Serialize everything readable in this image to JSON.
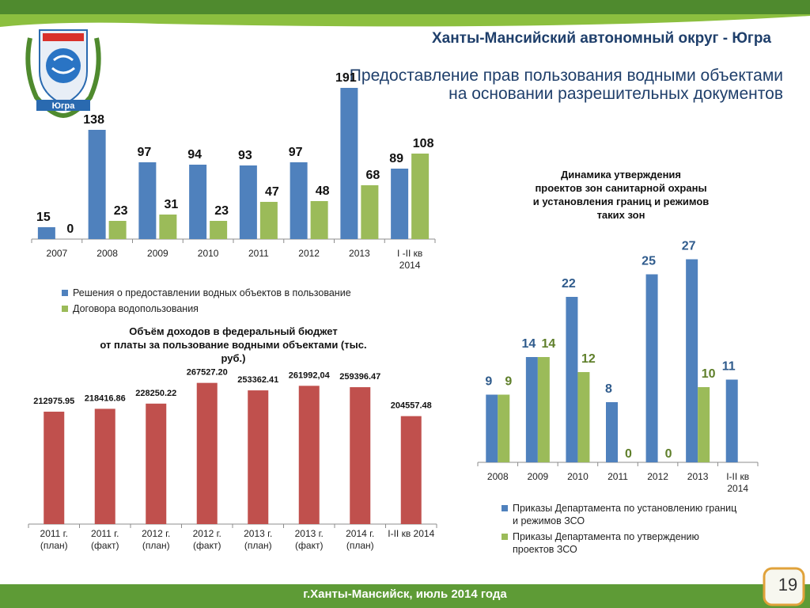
{
  "header": {
    "region": "Ханты-Мансийский автономный округ - Югра",
    "title_lines": [
      "Предоставление прав пользования водными объектами",
      "на основании разрешительных документов"
    ]
  },
  "logo": {
    "text": "Югра"
  },
  "footer": {
    "text": "г.Ханты-Мансийск, июль 2014 года",
    "page_number": "19"
  },
  "colors": {
    "blue": "#4f81bd",
    "green": "#9bbb59",
    "red": "#c0504d",
    "header_green": "#4f8a2e"
  },
  "chart_data": [
    {
      "type": "bar",
      "title": "",
      "categories": [
        "2007",
        "2008",
        "2009",
        "2010",
        "2011",
        "2012",
        "2013",
        "I -II кв 2014"
      ],
      "series": [
        {
          "name": "Решения о  предоставлении водных объектов в пользование",
          "values": [
            15,
            138,
            97,
            94,
            93,
            97,
            191,
            89
          ]
        },
        {
          "name": "Договора водопользования",
          "values": [
            0,
            23,
            31,
            23,
            47,
            48,
            68,
            108
          ]
        }
      ],
      "ylim": [
        0,
        200
      ],
      "legend": "bottom"
    },
    {
      "type": "bar",
      "title_lines": [
        "Объём доходов в федеральный бюджет",
        "от платы за пользование водными объектами   (тыс.",
        "руб.)"
      ],
      "categories": [
        "2011 г. (план)",
        "2011 г. (факт)",
        "2012 г. (план)",
        "2012 г. (факт)",
        "2013 г. (план)",
        "2013 г. (факт)",
        "2014 г. (план)",
        "I-II кв 2014"
      ],
      "values": [
        212975.95,
        218416.86,
        228250.22,
        267527.2,
        253362.41,
        261992.04,
        259396.47,
        204557.48
      ],
      "labels": [
        "212975.95",
        "218416.86",
        "228250.22",
        "267527.20",
        "253362.41",
        "261992,04",
        "259396.47",
        "204557.48"
      ],
      "ylim": [
        0,
        270000
      ]
    },
    {
      "type": "bar",
      "title_lines": [
        "Динамика утверждения",
        "проектов зон санитарной охраны",
        "и установления границ и режимов",
        "таких зон"
      ],
      "categories": [
        "2008",
        "2009",
        "2010",
        "2011",
        "2012",
        "2013",
        "I-II кв 2014"
      ],
      "series": [
        {
          "name": "Приказы Департамента по установлению границ и режимов ЗСО",
          "values": [
            9,
            14,
            22,
            8,
            25,
            27,
            11
          ]
        },
        {
          "name": "Приказы Департамента по утверждению проектов ЗСО",
          "values": [
            9,
            14,
            12,
            0,
            0,
            10,
            null
          ]
        }
      ],
      "ylim": [
        0,
        28
      ],
      "legend": "bottom"
    }
  ]
}
